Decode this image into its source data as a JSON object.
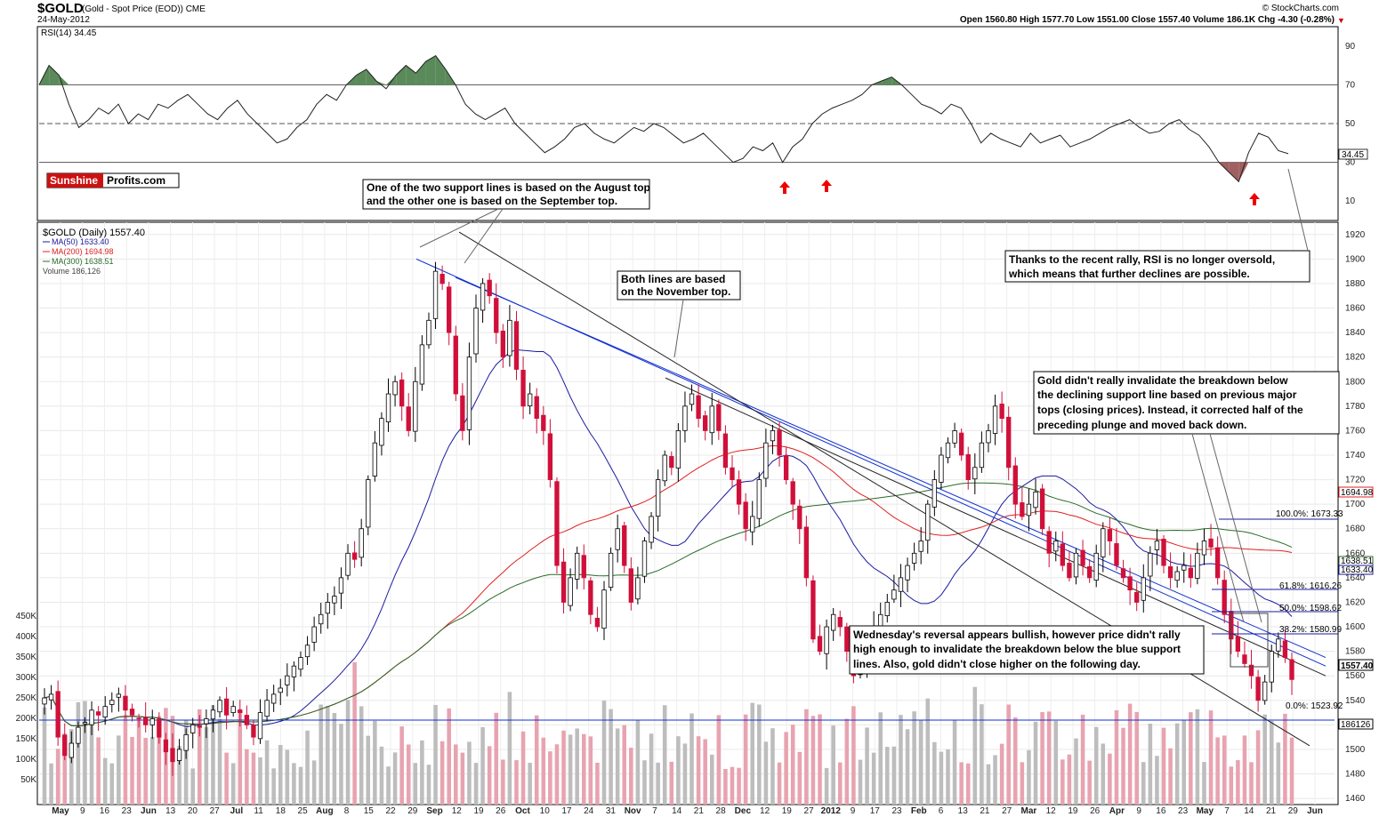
{
  "header": {
    "symbol": "$GOLD",
    "description": "(Gold - Spot Price (EOD)) CME",
    "date": "24-May-2012",
    "credit": "© StockCharts.com",
    "ohlc": "Open 1560.80  High 1577.70  Low 1551.00  Close 1557.40  Volume 186.1K  Chg -4.30 (-0.28%)"
  },
  "rsi_panel": {
    "label": "RSI(14) 34.45",
    "value_badge": "34.45",
    "ticks": [
      90,
      70,
      50,
      30,
      10
    ]
  },
  "logo": {
    "part1": "Sunshine",
    "part2": "Profits.com"
  },
  "legend": {
    "price": "$GOLD (Daily) 1557.40",
    "ma50": "MA(50) 1633.40",
    "ma200": "MA(200) 1694.98",
    "ma300": "MA(300) 1638.51",
    "volume": "Volume 186,126"
  },
  "annotations": {
    "a1_l1": "One of the two support lines is based on the August top",
    "a1_l2": "and the other one is based on the September top.",
    "a2_l1": "Both lines are based",
    "a2_l2": "on the November top.",
    "a3_l1": "Thanks to the recent rally, RSI is no longer oversold,",
    "a3_l2": "which means that further declines are possible.",
    "a4_l1": "Gold didn't really invalidate the breakdown below",
    "a4_l2": "the declining support line based on previous major",
    "a4_l3": "tops (closing prices). Instead, it corrected half of the",
    "a4_l4": "preceding plunge and moved back down.",
    "a5_l1": "Wednesday's reversal appears bullish, however price didn't rally",
    "a5_l2": "high enough to invalidate the breakdown below the blue support",
    "a5_l3": "lines. Also, gold didn't close higher on the following day."
  },
  "fib_labels": {
    "f100": "100.0%: 1673.33",
    "f618": "61.8%: 1616.26",
    "f50": "50.0%: 1598.62",
    "f382": "38.2%: 1580.99",
    "f0": "0.0%: 1523.92"
  },
  "right_badges": {
    "ma200": "1694.98",
    "ma300": "1638.51",
    "ma50": "1633.40",
    "close": "1557.40",
    "volume": "186126"
  },
  "colors": {
    "up": "#ffffff",
    "down": "#d0103a",
    "ma50": "#1a1aa0",
    "ma200": "#e02020",
    "ma300": "#2a6a2a",
    "trend_blue": "#1030d0",
    "rsi_fill_high": "#5a8a5a",
    "rsi_fill_low": "#a06060"
  },
  "chart_data": {
    "type": "candlestick",
    "price_axis": [
      1460,
      1480,
      1500,
      1520,
      1540,
      1560,
      1580,
      1600,
      1620,
      1640,
      1660,
      1680,
      1700,
      1720,
      1740,
      1760,
      1780,
      1800,
      1820,
      1840,
      1860,
      1880,
      1900,
      1920
    ],
    "volume_axis": [
      "50K",
      "100K",
      "150K",
      "200K",
      "250K",
      "300K",
      "350K",
      "400K",
      "450K"
    ],
    "ylim": [
      1455,
      1930
    ],
    "x_ticks": [
      "May",
      "9",
      "16",
      "23",
      "Jun",
      "13",
      "20",
      "27",
      "Jul",
      "11",
      "18",
      "25",
      "Aug",
      "8",
      "15",
      "22",
      "29",
      "Sep",
      "12",
      "19",
      "26",
      "Oct",
      "10",
      "17",
      "24",
      "31",
      "Nov",
      "7",
      "14",
      "21",
      "28",
      "Dec",
      "12",
      "19",
      "27",
      "2012",
      "9",
      "17",
      "23",
      "Feb",
      "6",
      "13",
      "21",
      "27",
      "Mar",
      "12",
      "19",
      "26",
      "Apr",
      "9",
      "16",
      "23",
      "May",
      "7",
      "14",
      "21",
      "29",
      "Jun"
    ],
    "closes": [
      1542,
      1545,
      1510,
      1495,
      1505,
      1518,
      1522,
      1532,
      1528,
      1535,
      1540,
      1545,
      1532,
      1528,
      1525,
      1520,
      1525,
      1510,
      1498,
      1490,
      1500,
      1512,
      1520,
      1518,
      1525,
      1532,
      1540,
      1528,
      1535,
      1530,
      1520,
      1510,
      1530,
      1540,
      1545,
      1550,
      1560,
      1568,
      1575,
      1585,
      1600,
      1610,
      1620,
      1625,
      1640,
      1660,
      1655,
      1680,
      1720,
      1750,
      1770,
      1790,
      1800,
      1780,
      1760,
      1800,
      1830,
      1850,
      1890,
      1880,
      1840,
      1790,
      1760,
      1820,
      1860,
      1880,
      1870,
      1840,
      1820,
      1850,
      1810,
      1780,
      1790,
      1770,
      1760,
      1720,
      1650,
      1620,
      1640,
      1660,
      1640,
      1610,
      1600,
      1630,
      1660,
      1680,
      1650,
      1620,
      1640,
      1670,
      1690,
      1720,
      1740,
      1730,
      1760,
      1780,
      1790,
      1770,
      1760,
      1780,
      1760,
      1730,
      1720,
      1700,
      1680,
      1690,
      1720,
      1750,
      1760,
      1740,
      1720,
      1700,
      1680,
      1640,
      1590,
      1580,
      1600,
      1610,
      1600,
      1580,
      1560,
      1570,
      1590,
      1600,
      1610,
      1620,
      1630,
      1640,
      1650,
      1660,
      1670,
      1700,
      1720,
      1740,
      1750,
      1760,
      1740,
      1720,
      1730,
      1750,
      1760,
      1780,
      1770,
      1730,
      1700,
      1690,
      1700,
      1710,
      1680,
      1660,
      1670,
      1650,
      1640,
      1660,
      1650,
      1640,
      1660,
      1680,
      1670,
      1650,
      1640,
      1630,
      1620,
      1640,
      1660,
      1670,
      1650,
      1640,
      1645,
      1650,
      1640,
      1660,
      1670,
      1665,
      1640,
      1610,
      1590,
      1580,
      1570,
      1560,
      1540,
      1555,
      1580,
      1590,
      1575,
      1557
    ],
    "rsi": {
      "levels": [
        70,
        50,
        30
      ],
      "ylim": [
        0,
        100
      ],
      "series": [
        70,
        80,
        75,
        60,
        48,
        52,
        58,
        55,
        60,
        50,
        55,
        52,
        60,
        58,
        62,
        65,
        60,
        55,
        52,
        58,
        62,
        55,
        50,
        45,
        40,
        42,
        48,
        52,
        60,
        65,
        62,
        70,
        75,
        78,
        72,
        68,
        75,
        80,
        76,
        82,
        85,
        78,
        70,
        60,
        55,
        52,
        55,
        58,
        50,
        45,
        40,
        35,
        38,
        42,
        48,
        50,
        45,
        42,
        40,
        44,
        48,
        46,
        50,
        48,
        44,
        40,
        42,
        45,
        40,
        35,
        30,
        32,
        38,
        36,
        40,
        30,
        38,
        42,
        50,
        55,
        58,
        60,
        62,
        65,
        70,
        72,
        74,
        70,
        65,
        60,
        58,
        55,
        60,
        58,
        50,
        40,
        45,
        42,
        40,
        38,
        45,
        40,
        42,
        44,
        38,
        40,
        42,
        45,
        48,
        50,
        52,
        48,
        45,
        46,
        50,
        52,
        47,
        44,
        38,
        30,
        25,
        20,
        35,
        45,
        43,
        36,
        34.45
      ]
    }
  }
}
